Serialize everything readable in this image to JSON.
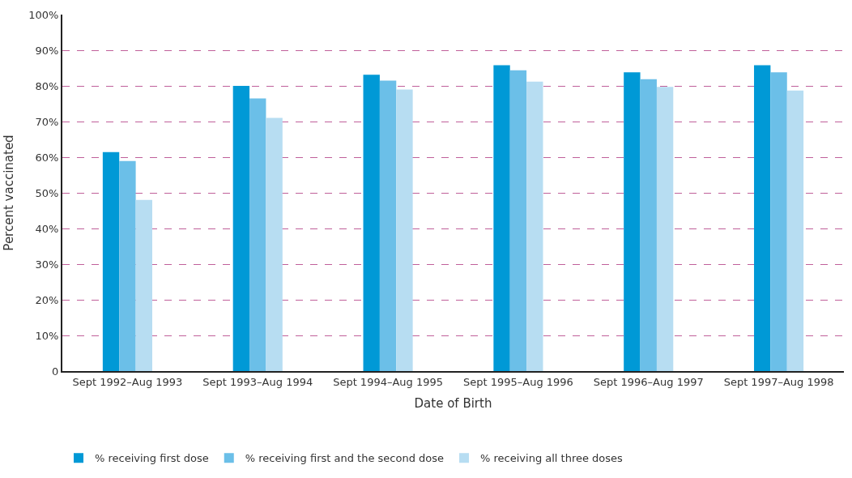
{
  "chart_data": {
    "type": "bar",
    "xlabel": "Date of Birth",
    "ylabel": "Percent vaccinated",
    "categories": [
      "Sept 1992–Aug 1993",
      "Sept 1993–Aug 1994",
      "Sept 1994–Aug 1995",
      "Sept 1995–Aug 1996",
      "Sept 1996–Aug 1997",
      "Sept 1997–Aug 1998"
    ],
    "series": [
      {
        "name": "% receiving first dose",
        "color": "#0099d6",
        "values": [
          61.4,
          80.0,
          83.1,
          85.8,
          83.8,
          85.8
        ]
      },
      {
        "name": "% receiving first and the second dose",
        "color": "#6bbfe8",
        "values": [
          58.9,
          76.5,
          81.5,
          84.4,
          81.9,
          83.8
        ]
      },
      {
        "name": "% receiving all three doses",
        "color": "#b7ddf2",
        "values": [
          48.0,
          71.0,
          79.0,
          81.2,
          79.7,
          78.7
        ]
      }
    ],
    "ylim": [
      0,
      100
    ],
    "yticks": [
      0,
      {
        "value": 10,
        "label": "10%"
      },
      {
        "value": 20,
        "label": "20%"
      },
      {
        "value": 30,
        "label": "30%"
      },
      {
        "value": 40,
        "label": "40%"
      },
      {
        "value": 50,
        "label": "50%"
      },
      {
        "value": 60,
        "label": "60%"
      },
      {
        "value": 70,
        "label": "70%"
      },
      {
        "value": 80,
        "label": "80%"
      },
      {
        "value": 90,
        "label": "90%"
      },
      {
        "value": 100,
        "label": "100%"
      }
    ],
    "grid": "y",
    "legend": "bottom left"
  }
}
